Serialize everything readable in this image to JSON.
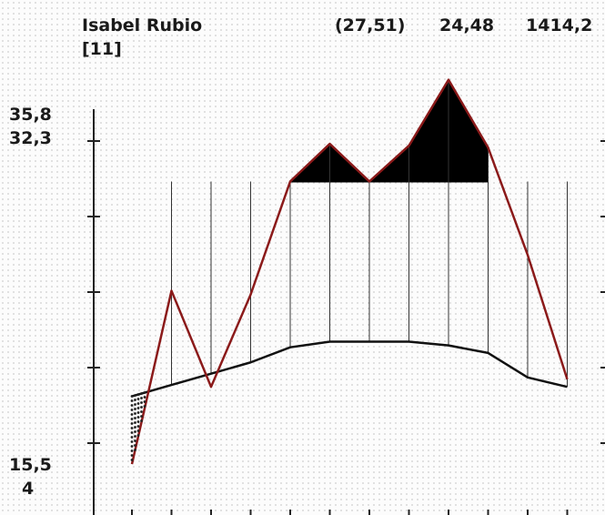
{
  "header": {
    "name": "Isabel Rubio",
    "index": "[11]",
    "pair": "(27,51)",
    "value": "24,48",
    "total": "1414,2"
  },
  "axis_labels": {
    "top": "35,8",
    "second": "32,3",
    "low": "15,5",
    "bottom": "4"
  },
  "chart_data": {
    "type": "line",
    "x": [
      1,
      2,
      3,
      4,
      5,
      6,
      7,
      8,
      9,
      10,
      11,
      12
    ],
    "series": [
      {
        "values": [
          17.3,
          26.5,
          21.4,
          26.3,
          32.3,
          34.3,
          32.3,
          34.2,
          37.7,
          34.1,
          28.4,
          21.8
        ]
      },
      {
        "values": [
          20.9,
          21.5,
          22.1,
          22.7,
          23.5,
          23.8,
          23.8,
          23.8,
          23.6,
          23.2,
          21.9,
          21.4
        ]
      }
    ],
    "threshold": 32.3,
    "ylim": [
      14.6,
      40
    ],
    "colors": {
      "upper": "#8b1a1a",
      "lower": "#111111",
      "fill": "#000000"
    }
  }
}
